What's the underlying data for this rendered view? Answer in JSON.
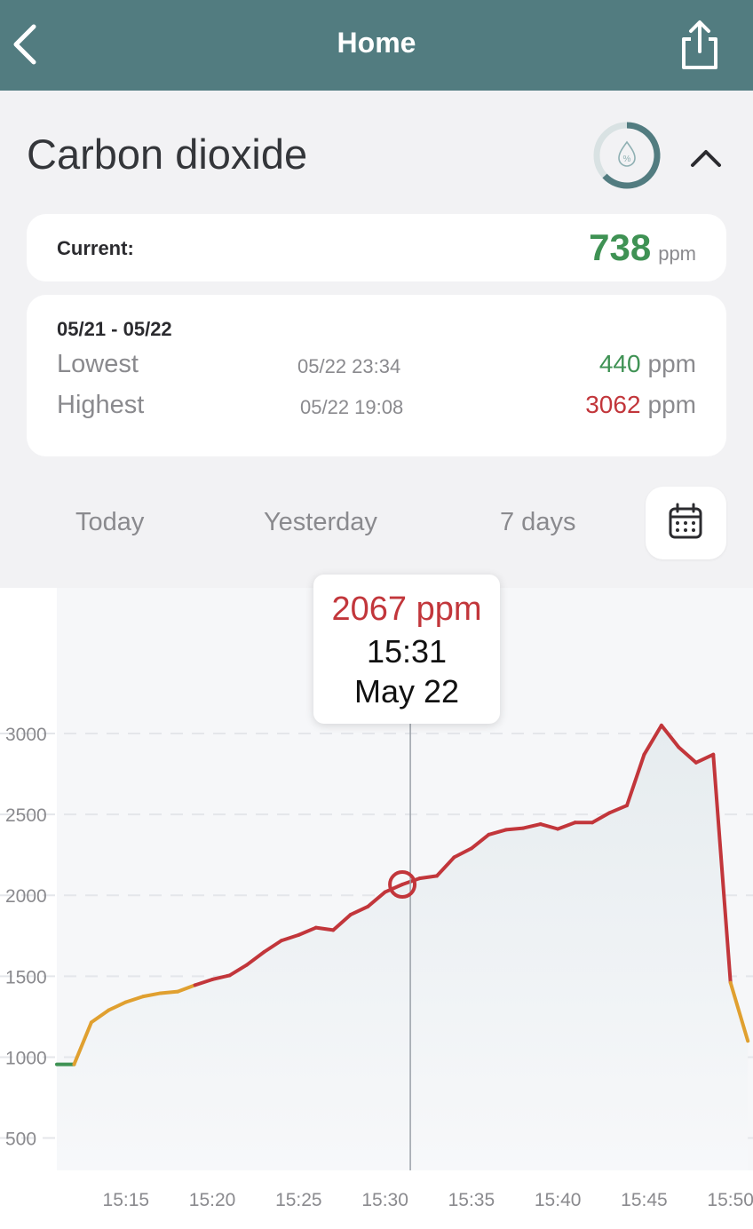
{
  "header": {
    "title": "Home",
    "back_icon": "chevron-left-icon",
    "share_icon": "share-icon",
    "background": "#527c80"
  },
  "sensor": {
    "title": "Carbon dioxide",
    "ring_icon": "humidity-drop-icon",
    "collapse_icon": "chevron-up-icon"
  },
  "current": {
    "label": "Current:",
    "value": "738",
    "unit": "ppm",
    "color": "#3f9254"
  },
  "range": {
    "period": "05/21 - 05/22",
    "lowest": {
      "label": "Lowest",
      "time": "05/22 23:34",
      "value": "440",
      "unit": "ppm",
      "color": "#3f9254"
    },
    "highest": {
      "label": "Highest",
      "time": "05/22 19:08",
      "value": "3062",
      "unit": "ppm",
      "color": "#c2363b"
    }
  },
  "tabs": [
    {
      "label": "Today"
    },
    {
      "label": "Yesterday"
    },
    {
      "label": "7 days"
    }
  ],
  "calendar_icon": "calendar-icon",
  "tooltip": {
    "value": "2067 ppm",
    "time": "15:31",
    "date": "May 22"
  },
  "chart_data": {
    "type": "line",
    "xlabel": "",
    "ylabel": "",
    "x_ticks": [
      "15:15",
      "15:20",
      "15:25",
      "15:30",
      "15:35",
      "15:40",
      "15:45",
      "15:50"
    ],
    "y_ticks": [
      500,
      1000,
      1500,
      2000,
      2500,
      3000
    ],
    "xlim_minutes_of_hour": [
      11.0,
      51.3
    ],
    "ylim": [
      300,
      3900
    ],
    "grid": true,
    "legend": "none",
    "colors": {
      "good": "#3f9254",
      "moderate": "#e0a030",
      "poor": "#c2363b",
      "cursor": "#9aa0a8"
    },
    "series": [
      {
        "x": [
          "15:11",
          "15:12",
          "15:13",
          "15:14",
          "15:15",
          "15:16",
          "15:17",
          "15:18",
          "15:19",
          "15:20",
          "15:21",
          "15:22",
          "15:23",
          "15:24",
          "15:25",
          "15:26",
          "15:27",
          "15:28",
          "15:29",
          "15:30",
          "15:31",
          "15:32",
          "15:33",
          "15:34",
          "15:35",
          "15:36",
          "15:37",
          "15:38",
          "15:39",
          "15:40",
          "15:41",
          "15:42",
          "15:43",
          "15:44",
          "15:45",
          "15:46",
          "15:47",
          "15:48",
          "15:49",
          "15:50",
          "15:51"
        ],
        "y": [
          955,
          955,
          1215,
          1290,
          1340,
          1375,
          1395,
          1405,
          1445,
          1480,
          1505,
          1570,
          1650,
          1720,
          1755,
          1800,
          1785,
          1880,
          1930,
          2020,
          2067,
          2105,
          2120,
          2235,
          2290,
          2375,
          2405,
          2415,
          2440,
          2410,
          2450,
          2450,
          2510,
          2555,
          2870,
          3050,
          2915,
          2820,
          2870,
          1460,
          1100
        ]
      }
    ],
    "highlight": {
      "x": "15:31",
      "y": 2067
    }
  }
}
